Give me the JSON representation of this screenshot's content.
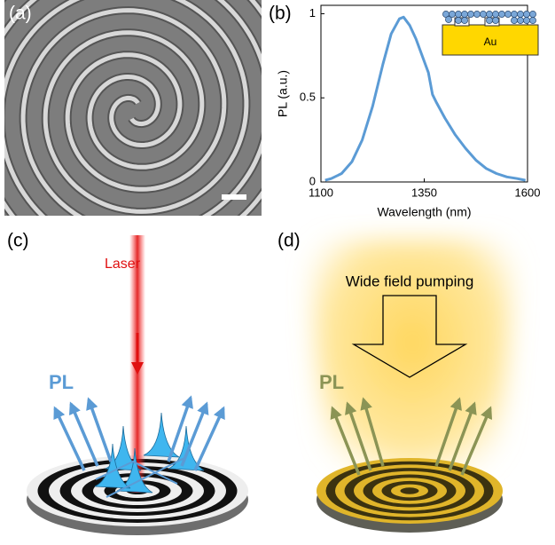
{
  "panels": {
    "a": "(a)",
    "b": "(b)",
    "c": "(c)",
    "d": "(d)"
  },
  "inset_label": "Au",
  "chart_data": {
    "type": "line",
    "x_label": "Wavelength (nm)",
    "y_label": "PL (a.u.)",
    "x": [
      1110,
      1125,
      1150,
      1175,
      1200,
      1225,
      1250,
      1270,
      1290,
      1300,
      1315,
      1330,
      1345,
      1360,
      1370,
      1380,
      1400,
      1425,
      1450,
      1475,
      1500,
      1525,
      1550,
      1575,
      1595
    ],
    "values": [
      0.01,
      0.02,
      0.05,
      0.12,
      0.25,
      0.45,
      0.7,
      0.88,
      0.97,
      0.98,
      0.93,
      0.85,
      0.75,
      0.65,
      0.52,
      0.47,
      0.38,
      0.28,
      0.2,
      0.13,
      0.08,
      0.05,
      0.03,
      0.02,
      0.01
    ],
    "color": "#5b9bd5",
    "xlim": [
      1100,
      1600
    ],
    "ylim": [
      0,
      1.05
    ],
    "xticks": [
      1100,
      1350,
      1600
    ],
    "yticks": [
      0,
      0.5,
      1
    ]
  },
  "panel_c": {
    "beam_label": "Laser",
    "emission_label": "PL"
  },
  "panel_d": {
    "pump_label": "Wide field pumping",
    "emission_label": "PL"
  }
}
